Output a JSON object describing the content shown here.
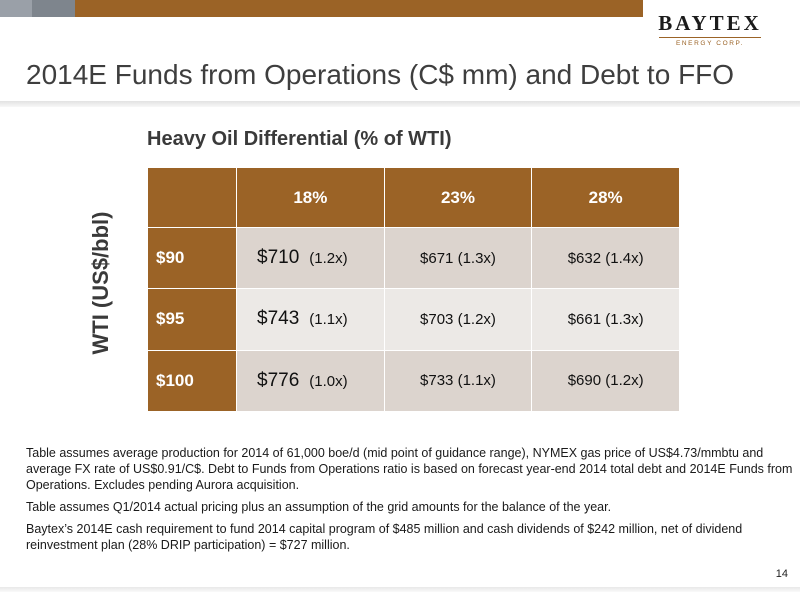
{
  "header": {
    "logo_name": "BAYTEX",
    "logo_sub": "ENERGY CORP.",
    "title": "2014E Funds from Operations (C$ mm) and Debt to FFO"
  },
  "table": {
    "heading": "Heavy Oil Differential (% of WTI)",
    "y_label": "WTI (US$/bbl)",
    "columns": [
      "18%",
      "23%",
      "28%"
    ],
    "rows": [
      {
        "label": "$90",
        "c1_value": "$710",
        "c1_ratio": "(1.2x)",
        "c2": "$671 (1.3x)",
        "c3": "$632 (1.4x)"
      },
      {
        "label": "$95",
        "c1_value": "$743",
        "c1_ratio": "(1.1x)",
        "c2": "$703 (1.2x)",
        "c3": "$661 (1.3x)"
      },
      {
        "label": "$100",
        "c1_value": "$776",
        "c1_ratio": "(1.0x)",
        "c2": "$733 (1.1x)",
        "c3": "$690 (1.2x)"
      }
    ]
  },
  "notes": [
    "Table assumes average production for 2014 of 61,000 boe/d (mid point of guidance range), NYMEX gas price of US$4.73/mmbtu and average FX rate of US$0.91/C$. Debt to Funds from Operations ratio is based on forecast year-end 2014 total debt and 2014E Funds from Operations. Excludes pending Aurora acquisition.",
    "Table assumes Q1/2014 actual pricing plus an assumption of the grid amounts for the balance of the year.",
    "Baytex’s 2014E cash requirement to fund 2014 capital program of $485 million and cash dividends of $242 million, net of dividend reinvestment plan (28% DRIP participation) = $727 million."
  ],
  "page_number": "14",
  "colors": {
    "brand_brown": "#9b6326",
    "cell_dark": "#dcd4ce",
    "cell_light": "#ece9e6"
  }
}
